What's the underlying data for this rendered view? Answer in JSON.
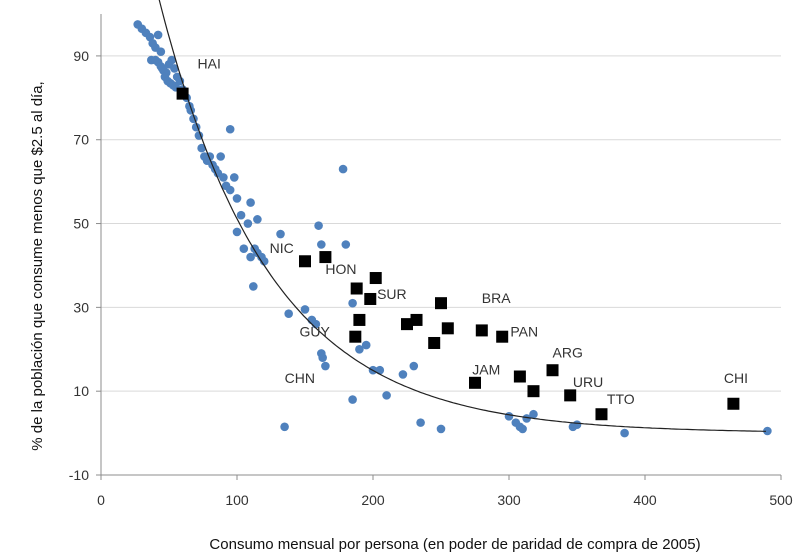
{
  "chart_data": {
    "type": "scatter",
    "xlabel": "Consumo mensual por persona (en poder de paridad de compra de 2005)",
    "ylabel": "% de la población que consume menos que $2.5 al día,",
    "xlim": [
      0,
      500
    ],
    "ylim": [
      -10,
      100
    ],
    "xticks": [
      "0",
      "100",
      "200",
      "300",
      "400",
      "500"
    ],
    "xtick_values": [
      0,
      100,
      200,
      300,
      400,
      500
    ],
    "yticks": [
      "-10",
      "10",
      "30",
      "50",
      "70",
      "90"
    ],
    "ytick_values": [
      -10,
      10,
      30,
      50,
      70,
      90
    ],
    "grid": "horizontal",
    "colors": {
      "world": "#4f81bd",
      "lac": "#000000",
      "fit": "#222222",
      "grid": "#d9d9d9",
      "axis": "#8c8c8c"
    },
    "series": [
      {
        "marker": "circle",
        "color": "#4f81bd",
        "points": [
          [
            27,
            97.5
          ],
          [
            30,
            96.5
          ],
          [
            33,
            95.5
          ],
          [
            36,
            94.5
          ],
          [
            38,
            93
          ],
          [
            40,
            92
          ],
          [
            42,
            95
          ],
          [
            44,
            91
          ],
          [
            37,
            89
          ],
          [
            40,
            89
          ],
          [
            42,
            88.5
          ],
          [
            44,
            87.5
          ],
          [
            46,
            86.5
          ],
          [
            48,
            86
          ],
          [
            50,
            88
          ],
          [
            52,
            89
          ],
          [
            54,
            87
          ],
          [
            56,
            85
          ],
          [
            58,
            84
          ],
          [
            45,
            87
          ],
          [
            47,
            85
          ],
          [
            49,
            84
          ],
          [
            51,
            83.5
          ],
          [
            53,
            83
          ],
          [
            55,
            82.5
          ],
          [
            60,
            82
          ],
          [
            63,
            80
          ],
          [
            65,
            78
          ],
          [
            66,
            77
          ],
          [
            68,
            75
          ],
          [
            70,
            73
          ],
          [
            72,
            71
          ],
          [
            74,
            68
          ],
          [
            76,
            66
          ],
          [
            78,
            65
          ],
          [
            80,
            66
          ],
          [
            82,
            64
          ],
          [
            84,
            63
          ],
          [
            86,
            62
          ],
          [
            88,
            66
          ],
          [
            90,
            61
          ],
          [
            92,
            59
          ],
          [
            95,
            58
          ],
          [
            98,
            61
          ],
          [
            100,
            56
          ],
          [
            95,
            72.5
          ],
          [
            103,
            52
          ],
          [
            108,
            50
          ],
          [
            110,
            55
          ],
          [
            115,
            51
          ],
          [
            100,
            48
          ],
          [
            105,
            44
          ],
          [
            110,
            42
          ],
          [
            113,
            44
          ],
          [
            115,
            43
          ],
          [
            118,
            42
          ],
          [
            120,
            41
          ],
          [
            112,
            35
          ],
          [
            132,
            47.5
          ],
          [
            160,
            49.5
          ],
          [
            162,
            45
          ],
          [
            178,
            63
          ],
          [
            180,
            45
          ],
          [
            185,
            31
          ],
          [
            138,
            28.5
          ],
          [
            150,
            29.5
          ],
          [
            155,
            27
          ],
          [
            158,
            26
          ],
          [
            162,
            19
          ],
          [
            163,
            18
          ],
          [
            165,
            16
          ],
          [
            190,
            20
          ],
          [
            195,
            21
          ],
          [
            200,
            15
          ],
          [
            205,
            15
          ],
          [
            185,
            8
          ],
          [
            210,
            9
          ],
          [
            222,
            14
          ],
          [
            230,
            16
          ],
          [
            235,
            2.5
          ],
          [
            250,
            1
          ],
          [
            135,
            1.5
          ],
          [
            300,
            4
          ],
          [
            305,
            2.5
          ],
          [
            308,
            1.5
          ],
          [
            310,
            1
          ],
          [
            313,
            3.5
          ],
          [
            318,
            4.5
          ],
          [
            347,
            1.5
          ],
          [
            350,
            2
          ],
          [
            385,
            0
          ],
          [
            490,
            0.5
          ]
        ]
      },
      {
        "marker": "square",
        "color": "#000000",
        "points": [
          [
            60,
            81
          ],
          [
            150,
            41
          ],
          [
            165,
            42
          ],
          [
            188,
            34.5
          ],
          [
            190,
            27
          ],
          [
            198,
            32
          ],
          [
            202,
            37
          ],
          [
            187,
            23
          ],
          [
            225,
            26
          ],
          [
            232,
            27
          ],
          [
            245,
            21.5
          ],
          [
            250,
            31
          ],
          [
            255,
            25
          ],
          [
            275,
            12
          ],
          [
            280,
            24.5
          ],
          [
            295,
            23
          ],
          [
            308,
            13.5
          ],
          [
            318,
            10
          ],
          [
            332,
            15
          ],
          [
            345,
            9
          ],
          [
            368,
            4.5
          ],
          [
            465,
            7
          ]
        ]
      }
    ],
    "fit_curve": {
      "type": "exponential",
      "a": 175,
      "b": 0.0123,
      "x_range": [
        35,
        490
      ]
    },
    "annotations": [
      {
        "text": "HAI",
        "x": 71,
        "y": 87
      },
      {
        "text": "NIC",
        "x": 124,
        "y": 43
      },
      {
        "text": "HON",
        "x": 165,
        "y": 38
      },
      {
        "text": "SUR",
        "x": 203,
        "y": 32
      },
      {
        "text": "GUY",
        "x": 146,
        "y": 23
      },
      {
        "text": "BRA",
        "x": 280,
        "y": 31
      },
      {
        "text": "PAN",
        "x": 301,
        "y": 23
      },
      {
        "text": "ARG",
        "x": 332,
        "y": 18
      },
      {
        "text": "JAM",
        "x": 273,
        "y": 14
      },
      {
        "text": "CHN",
        "x": 135,
        "y": 12
      },
      {
        "text": "URU",
        "x": 347,
        "y": 11
      },
      {
        "text": "TTO",
        "x": 372,
        "y": 7
      },
      {
        "text": "CHI",
        "x": 458,
        "y": 12
      }
    ]
  }
}
